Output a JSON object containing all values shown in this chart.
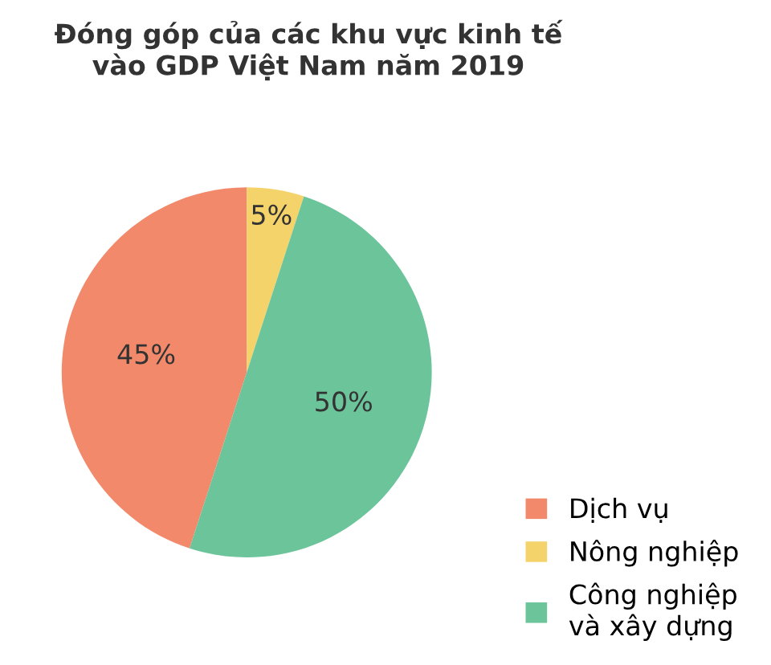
{
  "chart_data": {
    "type": "pie",
    "title": "Đóng góp của các khu vực kinh tế\nvào GDP Việt Nam năm 2019",
    "categories": [
      "Dịch vụ",
      "Nông nghiệp",
      "Công nghiệp\nvà xây dựng"
    ],
    "values": [
      45,
      5,
      50
    ],
    "colors": [
      "#f2896b",
      "#f4d36a",
      "#6cc49b"
    ],
    "value_labels": [
      "45%",
      "5%",
      "50%"
    ],
    "legend": "bottom right"
  }
}
